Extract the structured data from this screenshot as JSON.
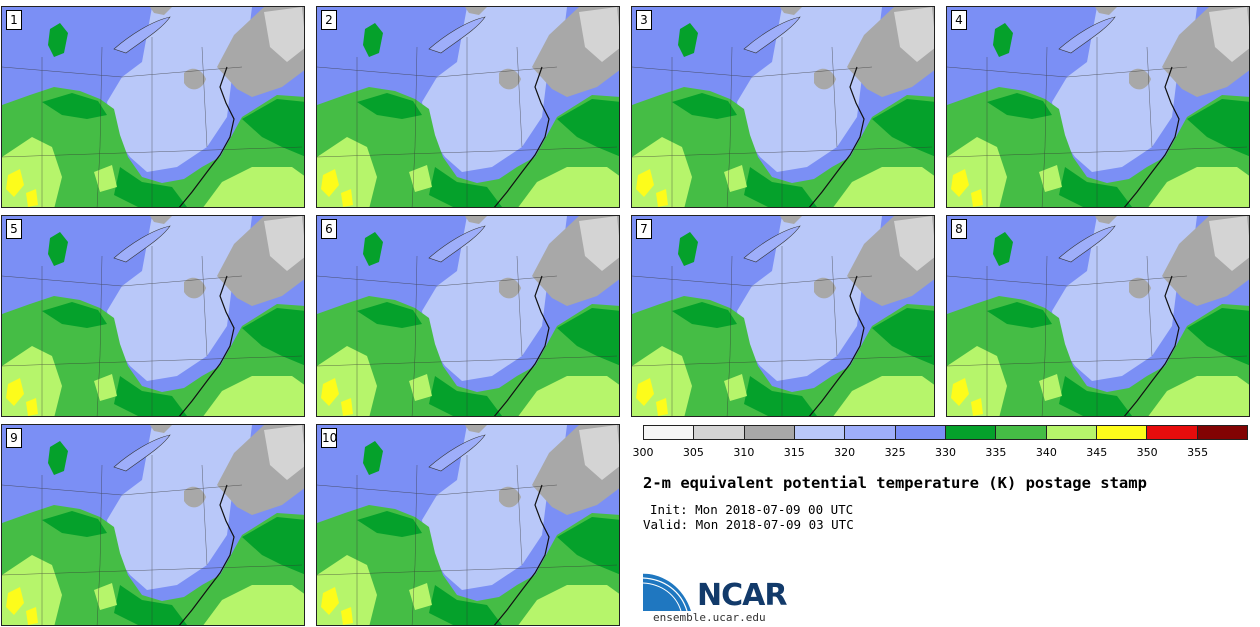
{
  "panels": [
    {
      "label": "1"
    },
    {
      "label": "2"
    },
    {
      "label": "3"
    },
    {
      "label": "4"
    },
    {
      "label": "5"
    },
    {
      "label": "6"
    },
    {
      "label": "7"
    },
    {
      "label": "8"
    },
    {
      "label": "9"
    },
    {
      "label": "10"
    }
  ],
  "colorbar": {
    "colors": [
      "#f6f6f6",
      "#d4d4d4",
      "#a8a8a8",
      "#b9c8f9",
      "#9eaefa",
      "#7b8ff5",
      "#05a12b",
      "#45bd45",
      "#b6f56b",
      "#fdfc1b",
      "#e70c0c",
      "#820303"
    ],
    "ticks": [
      "300",
      "305",
      "310",
      "315",
      "320",
      "325",
      "330",
      "335",
      "340",
      "345",
      "350",
      "355"
    ]
  },
  "title": "2-m equivalent potential temperature (K) postage stamp",
  "init": "Init: Mon 2018-07-09 00 UTC",
  "valid": "Valid: Mon 2018-07-09 03 UTC",
  "logo": {
    "text": "NCAR",
    "site": "ensemble.ucar.edu"
  }
}
